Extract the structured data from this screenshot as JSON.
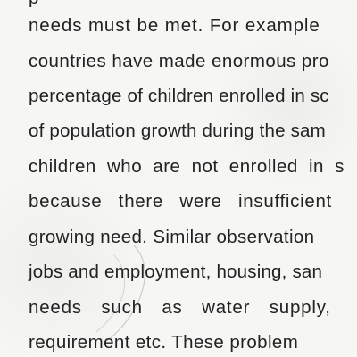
{
  "document": {
    "lines": [
      "p",
      "needs must be met. For example",
      "countries have made enormous pro",
      "percentage of children enrolled in sc",
      "of population growth during the sam",
      "children who are not enrolled in s",
      "because there were insufficient",
      "growing need. Similar observation",
      "jobs and employment, housing, san",
      "needs such as water supply,",
      "requirement etc. These problem"
    ]
  }
}
